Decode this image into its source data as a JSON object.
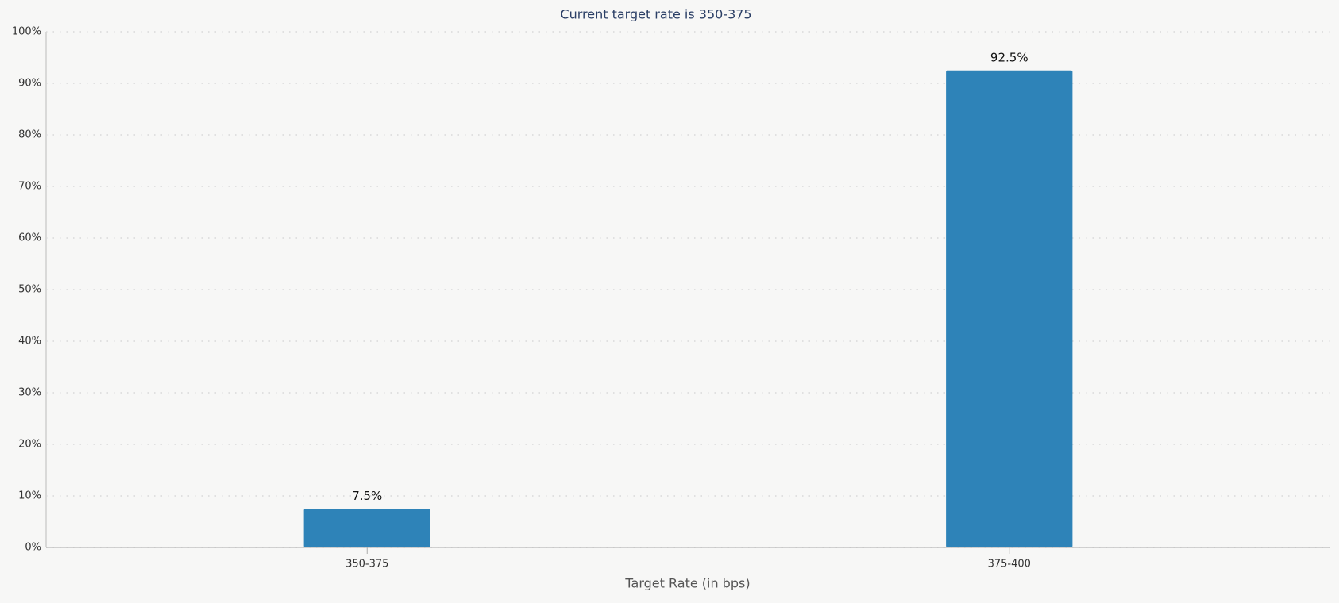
{
  "chart_data": {
    "type": "bar",
    "title": "Current target rate is 350-375",
    "x_label": "Target Rate (in bps)",
    "categories": [
      "350-375",
      "375-400"
    ],
    "values": [
      7.5,
      92.5
    ],
    "value_labels": [
      "7.5%",
      "92.5%"
    ],
    "color": "#2e83b8",
    "ylim": [
      0,
      100
    ],
    "yticks": [
      {
        "value": 0,
        "label": "0%"
      },
      {
        "value": 10,
        "label": "10%"
      },
      {
        "value": 20,
        "label": "20%"
      },
      {
        "value": 30,
        "label": "30%"
      },
      {
        "value": 40,
        "label": "40%"
      },
      {
        "value": 50,
        "label": "50%"
      },
      {
        "value": 60,
        "label": "60%"
      },
      {
        "value": 70,
        "label": "70%"
      },
      {
        "value": 80,
        "label": "80%"
      },
      {
        "value": 90,
        "label": "90%"
      },
      {
        "value": 100,
        "label": "100%"
      }
    ],
    "grid": true
  }
}
